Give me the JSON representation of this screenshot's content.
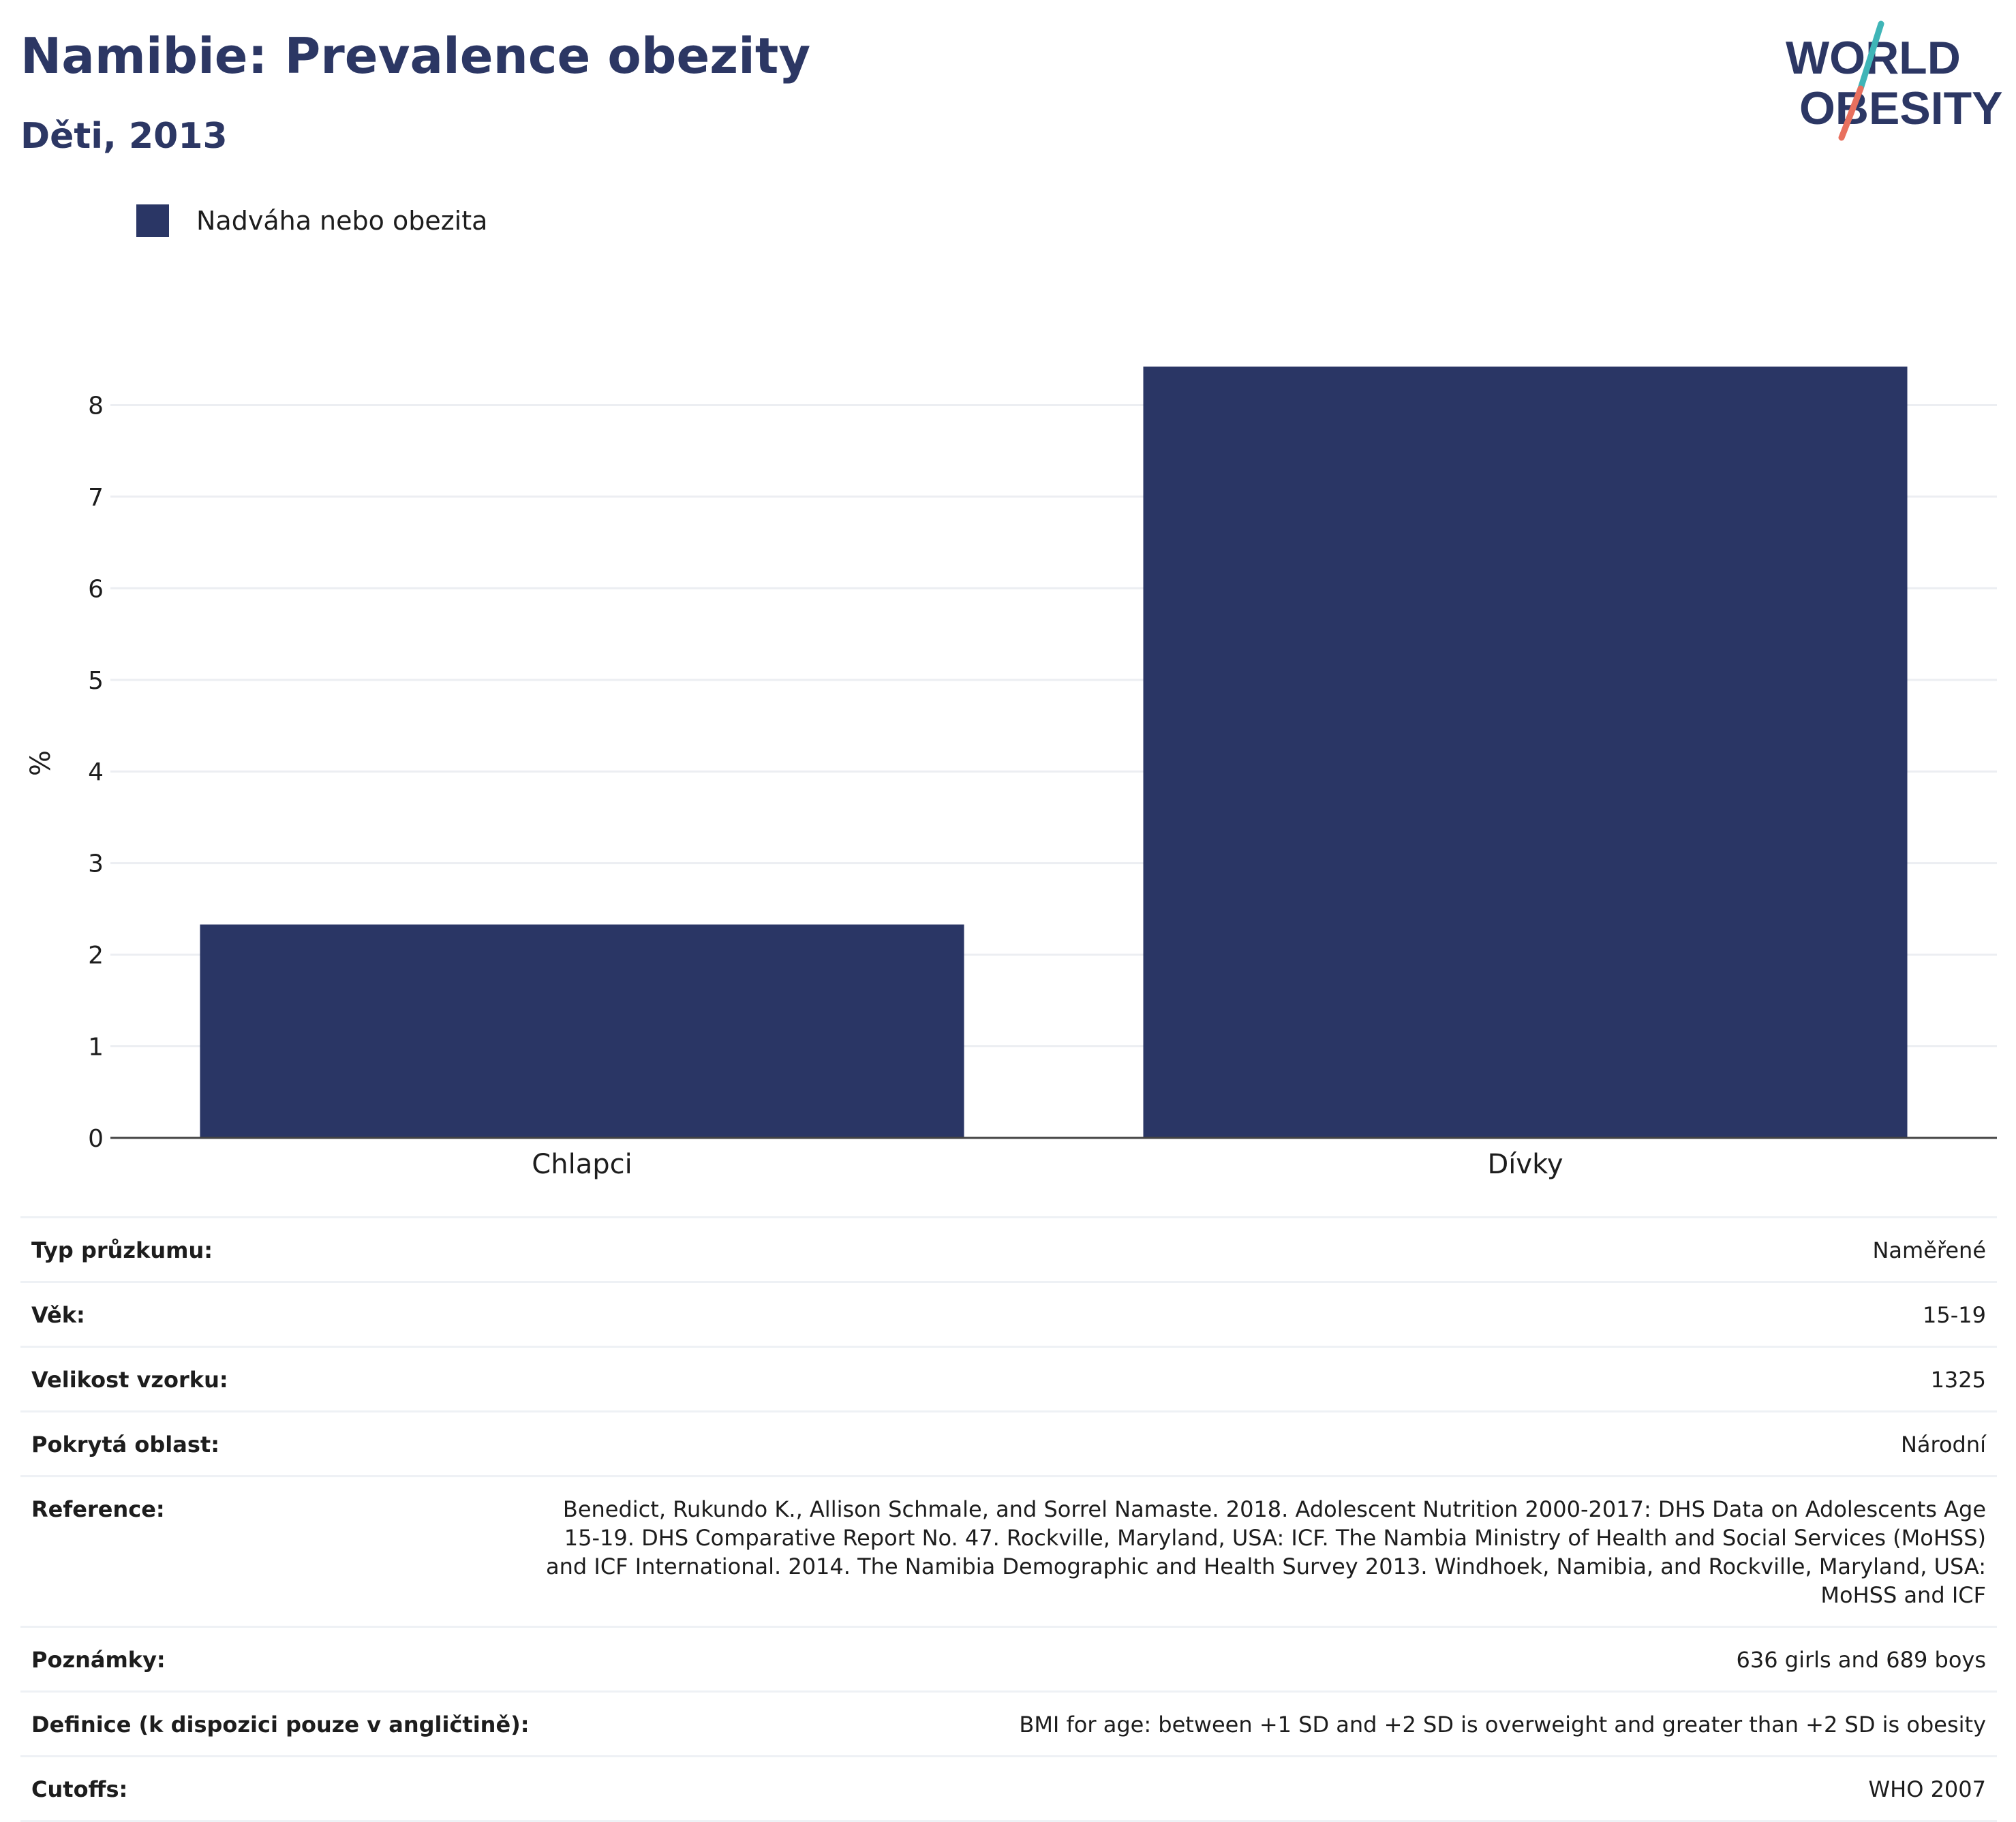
{
  "header": {
    "title": "Namibie: Prevalence obezity",
    "subtitle": "Děti, 2013",
    "logo_text": [
      "WORLD",
      "OBESITY"
    ]
  },
  "colors": {
    "bar": "#2a3665",
    "title": "#2c3764",
    "logo_text": "#2c3764",
    "logo_slash_teal": "#3fb5b7",
    "logo_slash_coral": "#e8705e",
    "grid": "#eceef2",
    "axis": "#444444"
  },
  "legend": {
    "label": "Nadváha nebo obezita"
  },
  "chart_data": {
    "type": "bar",
    "categories": [
      "Chlapci",
      "Dívky"
    ],
    "series": [
      {
        "name": "Nadváha nebo obezita",
        "values": [
          2.33,
          8.42
        ]
      }
    ],
    "xlabel": "",
    "ylabel": "%",
    "ylim": [
      0,
      9
    ],
    "yticks": [
      0,
      1,
      2,
      3,
      4,
      5,
      6,
      7,
      8
    ],
    "grid": true,
    "legend_position": "top-left"
  },
  "details": [
    {
      "label": "Typ průzkumu:",
      "value": "Naměřené"
    },
    {
      "label": "Věk:",
      "value": "15-19"
    },
    {
      "label": "Velikost vzorku:",
      "value": "1325"
    },
    {
      "label": "Pokrytá oblast:",
      "value": "Národní"
    },
    {
      "label": "Reference:",
      "value": "Benedict, Rukundo K., Allison Schmale, and Sorrel Namaste. 2018. Adolescent Nutrition 2000-2017: DHS Data on Adolescents Age 15-19. DHS Comparative Report No. 47. Rockville, Maryland, USA: ICF. The Nambia Ministry of Health and Social Services (MoHSS) and ICF International. 2014. The Namibia Demographic and Health Survey 2013. Windhoek, Namibia, and Rockville, Maryland, USA: MoHSS and ICF"
    },
    {
      "label": "Poznámky:",
      "value": "636 girls and 689 boys"
    },
    {
      "label": "Definice (k dispozici pouze v angličtině):",
      "value": "BMI for age: between +1 SD and +2 SD is overweight and greater than +2 SD is obesity"
    },
    {
      "label": "Cutoffs:",
      "value": "WHO 2007"
    }
  ]
}
